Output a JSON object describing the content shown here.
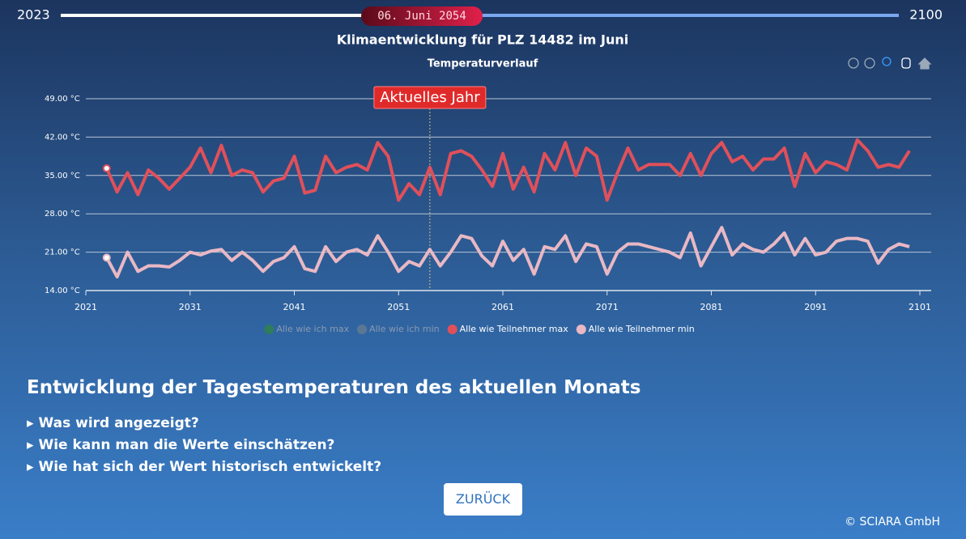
{
  "slider": {
    "start": 2023,
    "end": 2100,
    "current": "06. Juni 2054"
  },
  "page_title": "Klimaentwicklung für PLZ 14482 im Juni",
  "chart_data": {
    "type": "line",
    "title": "Temperaturverlauf",
    "x": [
      2023,
      2024,
      2025,
      2026,
      2027,
      2028,
      2029,
      2030,
      2031,
      2032,
      2033,
      2034,
      2035,
      2036,
      2037,
      2038,
      2039,
      2040,
      2041,
      2042,
      2043,
      2044,
      2045,
      2046,
      2047,
      2048,
      2049,
      2050,
      2051,
      2052,
      2053,
      2054,
      2055,
      2056,
      2057,
      2058,
      2059,
      2060,
      2061,
      2062,
      2063,
      2064,
      2065,
      2066,
      2067,
      2068,
      2069,
      2070,
      2071,
      2072,
      2073,
      2074,
      2075,
      2076,
      2077,
      2078,
      2079,
      2080,
      2081,
      2082,
      2083,
      2084,
      2085,
      2086,
      2087,
      2088,
      2089,
      2090,
      2091,
      2092,
      2093,
      2094,
      2095,
      2096,
      2097,
      2098,
      2099,
      2100
    ],
    "series": [
      {
        "name": "Alle wie Teilnehmer max",
        "color": "#e0505a",
        "values": [
          36.3,
          32,
          35.5,
          31.5,
          36,
          34.5,
          32.5,
          34.5,
          36.5,
          40,
          35.5,
          40.5,
          35,
          36,
          35.5,
          32,
          34,
          34.5,
          38.5,
          31.8,
          32.3,
          38.5,
          35.5,
          36.5,
          37,
          36,
          41,
          38.5,
          30.5,
          33.5,
          31.5,
          36.5,
          31.5,
          39,
          39.5,
          38.5,
          36,
          33,
          39,
          32.5,
          36.5,
          32,
          39,
          36,
          41,
          35,
          40,
          38.5,
          30.5,
          35.5,
          40,
          36,
          37,
          37,
          37,
          35,
          39,
          35,
          39,
          41,
          37.5,
          38.5,
          36,
          38,
          38,
          40,
          33,
          39,
          35.5,
          37.5,
          37,
          36,
          41.5,
          39.5,
          36.5,
          37,
          36.5,
          39.5
        ]
      },
      {
        "name": "Alle wie Teilnehmer min",
        "color": "#e8b8c4",
        "values": [
          20,
          16.5,
          21,
          17.5,
          18.5,
          18.5,
          18.3,
          19.5,
          21,
          20.5,
          21.2,
          21.5,
          19.5,
          21,
          19.5,
          17.5,
          19.3,
          20,
          22,
          18,
          17.5,
          22,
          19.3,
          21,
          21.5,
          20.5,
          24,
          21,
          17.5,
          19.3,
          18.5,
          21.5,
          18.5,
          21,
          24,
          23.5,
          20.3,
          18.5,
          23,
          19.5,
          21.5,
          17,
          22,
          21.5,
          24,
          19.3,
          22.5,
          22,
          17,
          21,
          22.5,
          22.5,
          22,
          21.5,
          21,
          20,
          24.5,
          18.5,
          22,
          25.5,
          20.5,
          22.5,
          21.5,
          21,
          22.5,
          24.5,
          20.5,
          23.5,
          20.5,
          21,
          23,
          23.5,
          23.5,
          23,
          19,
          21.5,
          22.5,
          22
        ]
      }
    ],
    "hidden_series": [
      {
        "name": "Alle wie ich max",
        "color": "#2e7d5b"
      },
      {
        "name": "Alle wie ich min",
        "color": "#5a7894"
      }
    ],
    "xlim": [
      2021,
      2101
    ],
    "xticks": [
      2021,
      2031,
      2041,
      2051,
      2061,
      2071,
      2081,
      2091,
      2101
    ],
    "ylim": [
      14,
      49
    ],
    "yticks": [
      {
        "value": 14,
        "label": "14.00 °C"
      },
      {
        "value": 21,
        "label": "21.00 °C"
      },
      {
        "value": 28,
        "label": "28.00 °C"
      },
      {
        "value": 35,
        "label": "35.00 °C"
      },
      {
        "value": 42,
        "label": "42.00 °C"
      },
      {
        "value": 49,
        "label": "49.00 °C"
      }
    ],
    "grid": true,
    "annotation": {
      "text": "Aktuelles Jahr",
      "x": 2054
    }
  },
  "section": {
    "heading": "Entwicklung der Tagestemperaturen des aktuellen Monats",
    "items": [
      "Was wird angezeigt?",
      "Wie kann man die Werte einschätzen?",
      "Wie hat sich der Wert historisch entwickelt?"
    ],
    "button": "ZURÜCK"
  },
  "footer": "© SCIARA GmbH"
}
